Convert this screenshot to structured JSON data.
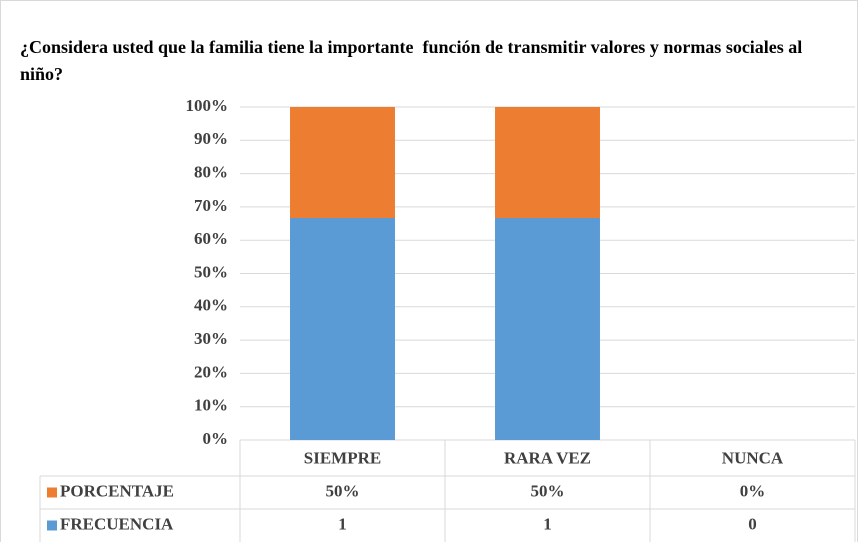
{
  "chart_data": {
    "type": "bar",
    "stacking": "percent",
    "title": "¿Considera usted que la familia tiene la importante  función de transmitir valores y normas sociales al niño?",
    "categories": [
      "SIEMPRE",
      "RARA VEZ",
      "NUNCA"
    ],
    "series": [
      {
        "name": "FRECUENCIA",
        "color": "#5b9bd5",
        "values": [
          1,
          1,
          0
        ],
        "value_labels": [
          "1",
          "1",
          "0"
        ]
      },
      {
        "name": "PORCENTAJE",
        "color": "#ed7d31",
        "values": [
          0.5,
          0.5,
          0
        ],
        "value_labels": [
          "50%",
          "50%",
          "0%"
        ]
      }
    ],
    "ylim": [
      0,
      100
    ],
    "yticks": [
      {
        "value": 0,
        "label": "0%"
      },
      {
        "value": 10,
        "label": "10%"
      },
      {
        "value": 20,
        "label": "20%"
      },
      {
        "value": 30,
        "label": "30%"
      },
      {
        "value": 40,
        "label": "40%"
      },
      {
        "value": 50,
        "label": "50%"
      },
      {
        "value": 60,
        "label": "60%"
      },
      {
        "value": 70,
        "label": "70%"
      },
      {
        "value": 80,
        "label": "80%"
      },
      {
        "value": 90,
        "label": "90%"
      },
      {
        "value": 100,
        "label": "100%"
      }
    ],
    "grid": true,
    "data_table": true
  }
}
